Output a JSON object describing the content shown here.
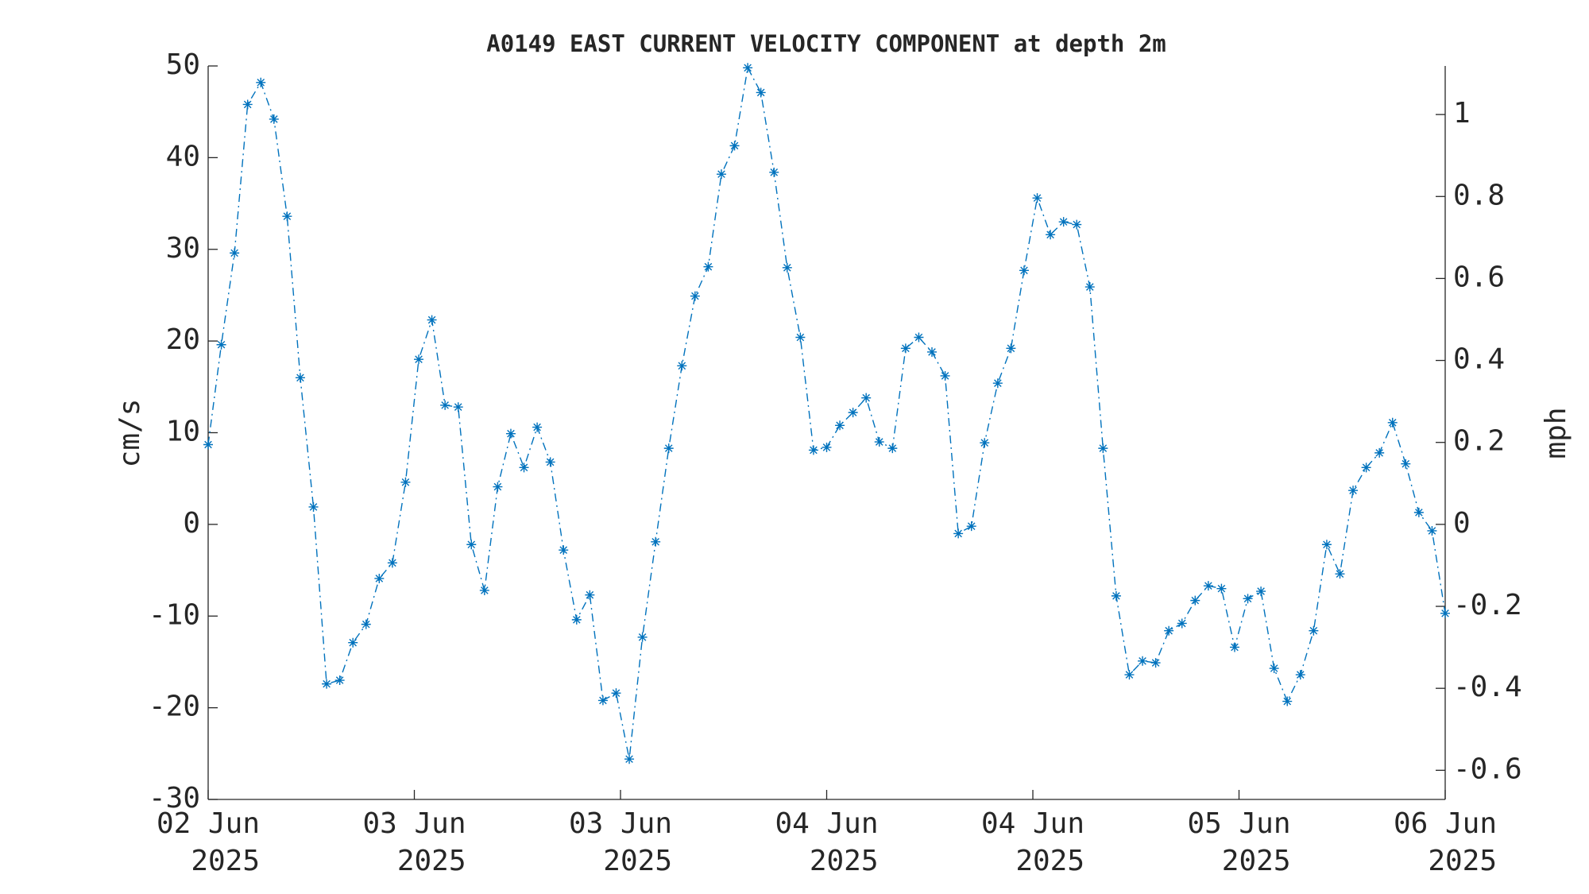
{
  "chart_data": {
    "type": "line",
    "title": "A0149 EAST CURRENT VELOCITY COMPONENT at depth 2m",
    "ylabel": "cm/s",
    "y2label": "mph",
    "color": "#0072bd",
    "line_style": "dashdot",
    "marker": "asterisk",
    "grid": false,
    "x": [
      0,
      1,
      2,
      3,
      4,
      5,
      6,
      7,
      8,
      9,
      10,
      11,
      12,
      13,
      14,
      15,
      16,
      17,
      18,
      19,
      20,
      21,
      22,
      23,
      24,
      25,
      26,
      27,
      28,
      29,
      30,
      31,
      32,
      33,
      34,
      35,
      36,
      37,
      38,
      39,
      40,
      41,
      42,
      43,
      44,
      45,
      46,
      47,
      48,
      49,
      50,
      51,
      52,
      53,
      54,
      55,
      56,
      57,
      58,
      59,
      60,
      61,
      62,
      63,
      64,
      65,
      66,
      67,
      68,
      69,
      70,
      71,
      72,
      73,
      74,
      75,
      76,
      77,
      78,
      79,
      80,
      81,
      82,
      83,
      84,
      85,
      86,
      87,
      88,
      89,
      90,
      91,
      92,
      93,
      94
    ],
    "values": [
      8.7,
      19.6,
      29.6,
      45.8,
      48.2,
      44.2,
      33.6,
      16.0,
      1.9,
      -17.4,
      -17.0,
      -12.9,
      -10.9,
      -5.9,
      -4.2,
      4.6,
      18.0,
      22.3,
      13.0,
      12.8,
      -2.2,
      -7.2,
      4.1,
      9.9,
      6.2,
      10.6,
      6.8,
      -2.8,
      -10.4,
      -7.7,
      -19.2,
      -18.4,
      -25.6,
      -12.3,
      -1.9,
      8.3,
      17.3,
      24.9,
      28.1,
      38.2,
      41.3,
      49.8,
      47.1,
      38.4,
      28.0,
      20.4,
      8.1,
      8.4,
      10.8,
      12.2,
      13.8,
      9.0,
      8.3,
      19.2,
      20.4,
      18.8,
      16.2,
      -1.0,
      -0.2,
      8.9,
      15.4,
      19.2,
      27.7,
      35.6,
      31.6,
      33.0,
      32.7,
      25.9,
      8.3,
      -7.8,
      -16.4,
      -14.9,
      -15.1,
      -11.6,
      -10.8,
      -8.3,
      -6.7,
      -7.0,
      -13.4,
      -8.1,
      -7.3,
      -15.7,
      -19.3,
      -16.4,
      -11.6,
      -2.2,
      -5.4,
      3.7,
      6.2,
      7.8,
      11.1,
      6.6,
      1.3,
      -0.7,
      -9.7
    ],
    "xlim": [
      0,
      94
    ],
    "xticks": [
      {
        "value": 0,
        "label": "02 Jun",
        "year": "2025"
      },
      {
        "value": 15.667,
        "label": "03 Jun",
        "year": "2025"
      },
      {
        "value": 31.333,
        "label": "03 Jun",
        "year": "2025"
      },
      {
        "value": 47,
        "label": "04 Jun",
        "year": "2025"
      },
      {
        "value": 62.667,
        "label": "04 Jun",
        "year": "2025"
      },
      {
        "value": 78.333,
        "label": "05 Jun",
        "year": "2025"
      },
      {
        "value": 94,
        "label": "06 Jun",
        "year": "2025"
      }
    ],
    "ylim": [
      -30,
      50
    ],
    "yticks": [
      -30,
      -20,
      -10,
      0,
      10,
      20,
      30,
      40,
      50
    ],
    "y2lim": [
      -0.6711,
      1.1185
    ],
    "y2ticks": [
      -0.6,
      -0.4,
      -0.2,
      0,
      0.2,
      0.4,
      0.6,
      0.8,
      1
    ]
  }
}
